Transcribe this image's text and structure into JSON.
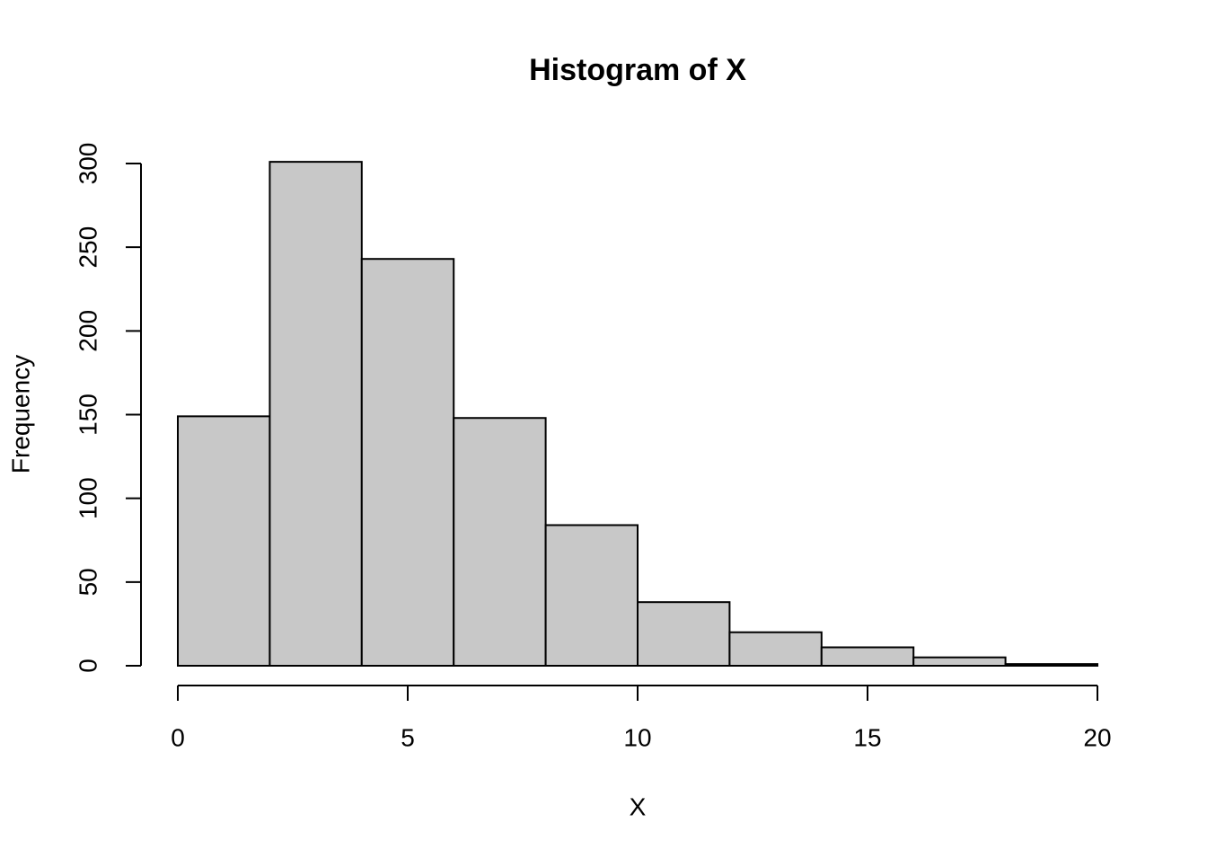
{
  "chart_data": {
    "type": "histogram",
    "title": "Histogram of X",
    "x_label": "X",
    "y_label": "Frequency",
    "bins": [
      0,
      2,
      4,
      6,
      8,
      10,
      12,
      14,
      16,
      18,
      20
    ],
    "values": [
      149,
      301,
      243,
      148,
      84,
      38,
      20,
      11,
      5,
      1
    ],
    "color": "#c8c8c8",
    "xlim": [
      0,
      20
    ],
    "xticks": [
      0,
      5,
      10,
      15,
      20
    ],
    "ylim": [
      0,
      300
    ],
    "yticks": [
      0,
      50,
      100,
      150,
      200,
      250,
      300
    ],
    "grid": false
  }
}
